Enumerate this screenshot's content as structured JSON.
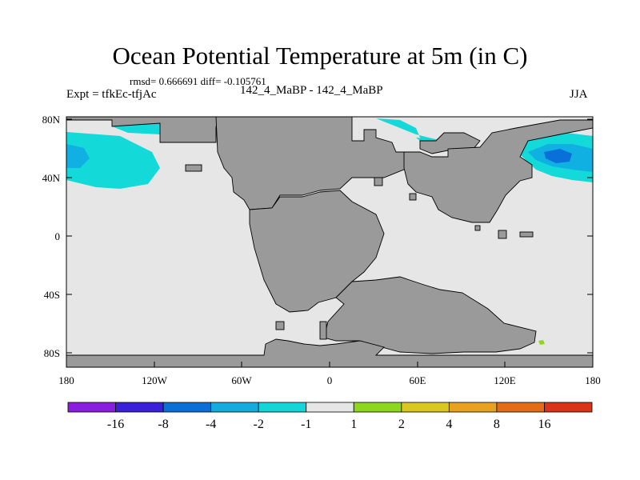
{
  "title": "Ocean Potential Temperature at 5m (in C)",
  "stats_line": "rmsd= 0.666691 diff= -0.105761",
  "experiment_label": "Expt = tfkEc-tfjAc",
  "comparison_label": "142_4_MaBP - 142_4_MaBP",
  "season_label": "JJA",
  "map": {
    "lon_ticks": [
      "180",
      "120W",
      "60W",
      "0",
      "60E",
      "120E",
      "180"
    ],
    "lat_ticks": [
      "80N",
      "40N",
      "0",
      "40S",
      "80S"
    ],
    "colors": {
      "land": "#9a9a9a",
      "ocean_neutral": "#e6e6e6",
      "anomaly_minus1_minus2": "#13d9d9",
      "anomaly_minus2_minus4": "#10b1e2",
      "anomaly_minus4_minus8": "#0a70d9",
      "anomaly_plus1_plus2": "#8fd61f"
    }
  },
  "colorbar": {
    "labels": [
      "-16",
      "-8",
      "-4",
      "-2",
      "-1",
      "1",
      "2",
      "4",
      "8",
      "16"
    ],
    "colors": [
      "#8a1ee0",
      "#3a20d9",
      "#0b6fd8",
      "#14acdf",
      "#14d6d6",
      "#e6e6e6",
      "#8fd61f",
      "#d9c81f",
      "#e8a21f",
      "#e56c16",
      "#d9331a"
    ]
  }
}
